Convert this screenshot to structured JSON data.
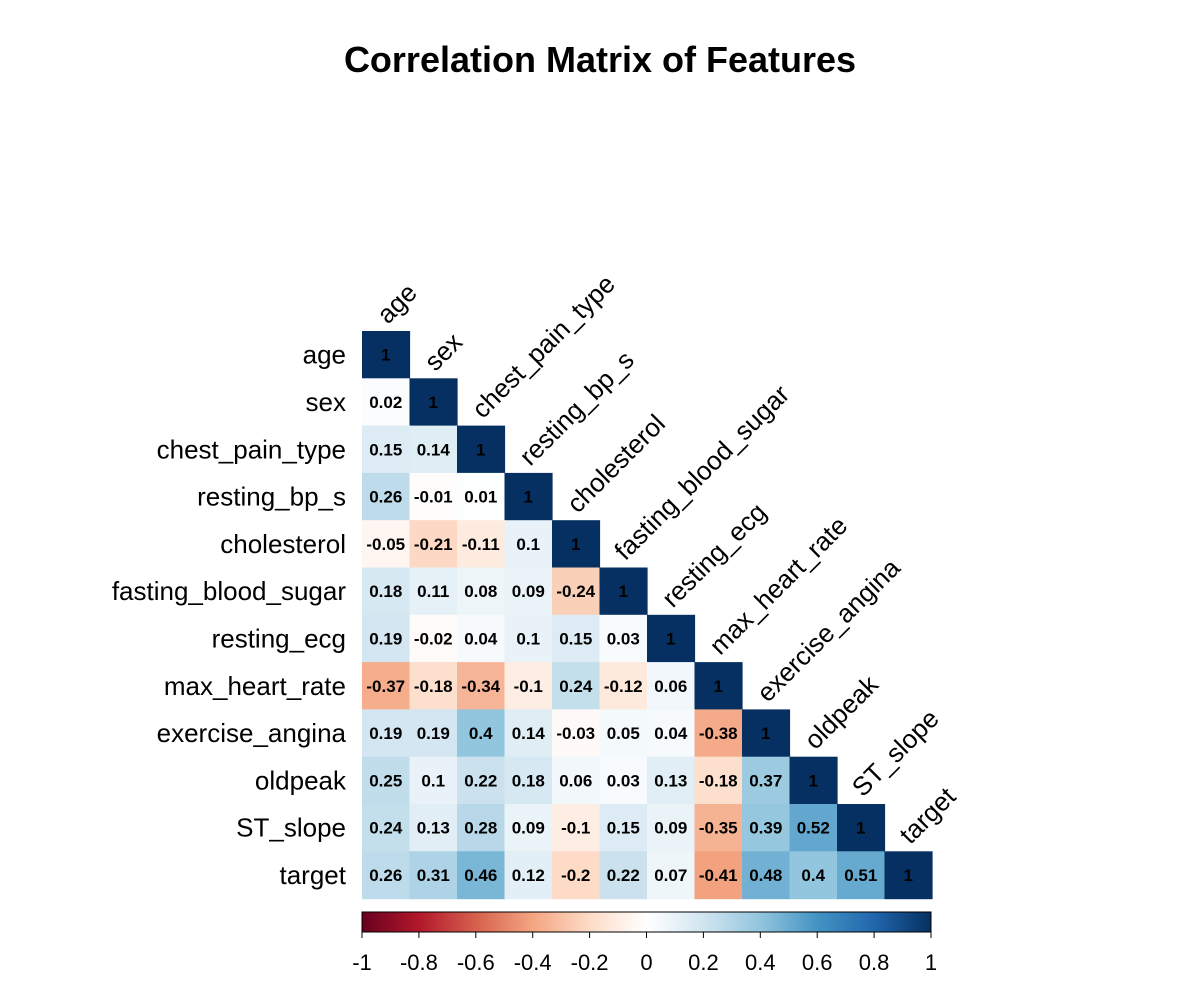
{
  "chart_data": {
    "type": "heatmap",
    "title": "Correlation Matrix of Features",
    "layout": "lower-triangle",
    "variables": [
      "age",
      "sex",
      "chest_pain_type",
      "resting_bp_s",
      "cholesterol",
      "fasting_blood_sugar",
      "resting_ecg",
      "max_heart_rate",
      "exercise_angina",
      "oldpeak",
      "ST_slope",
      "target"
    ],
    "values": [
      [
        "1"
      ],
      [
        "0.02",
        "1"
      ],
      [
        "0.15",
        "0.14",
        "1"
      ],
      [
        "0.26",
        "-0.01",
        "0.01",
        "1"
      ],
      [
        "-0.05",
        "-0.21",
        "-0.11",
        "0.1",
        "1"
      ],
      [
        "0.18",
        "0.11",
        "0.08",
        "0.09",
        "-0.24",
        "1"
      ],
      [
        "0.19",
        "-0.02",
        "0.04",
        "0.1",
        "0.15",
        "0.03",
        "1"
      ],
      [
        "-0.37",
        "-0.18",
        "-0.34",
        "-0.1",
        "0.24",
        "-0.12",
        "0.06",
        "1"
      ],
      [
        "0.19",
        "0.19",
        "0.4",
        "0.14",
        "-0.03",
        "0.05",
        "0.04",
        "-0.38",
        "1"
      ],
      [
        "0.25",
        "0.1",
        "0.22",
        "0.18",
        "0.06",
        "0.03",
        "0.13",
        "-0.18",
        "0.37",
        "1"
      ],
      [
        "0.24",
        "0.13",
        "0.28",
        "0.09",
        "-0.1",
        "0.15",
        "0.09",
        "-0.35",
        "0.39",
        "0.52",
        "1"
      ],
      [
        "0.26",
        "0.31",
        "0.46",
        "0.12",
        "-0.2",
        "0.22",
        "0.07",
        "-0.41",
        "0.48",
        "0.4",
        "0.51",
        "1"
      ]
    ],
    "colorbar": {
      "range": [
        -1,
        1
      ],
      "ticks": [
        "-1",
        "-0.8",
        "-0.6",
        "-0.4",
        "-0.2",
        "0",
        "0.2",
        "0.4",
        "0.6",
        "0.8",
        "1"
      ]
    },
    "colors": [
      "#67001F",
      "#B2182B",
      "#D6604D",
      "#F4A582",
      "#FDDBC7",
      "#FFFFFF",
      "#D1E5F0",
      "#92C5DE",
      "#4393C3",
      "#2166AC",
      "#053061"
    ]
  }
}
